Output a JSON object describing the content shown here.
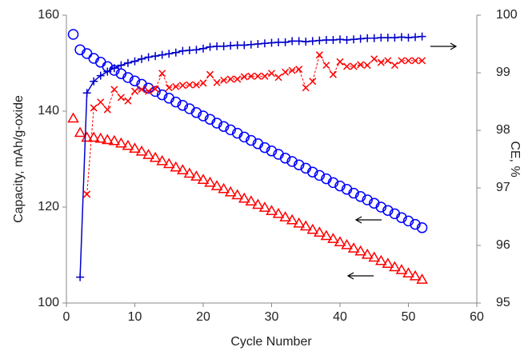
{
  "chart_data": {
    "type": "scatter",
    "x_label": "Cycle Number",
    "y_label": "Capacity, mAh/g-oxide",
    "y2_label": "CE, %",
    "xlim": [
      0,
      60
    ],
    "xticks": [
      0,
      10,
      20,
      30,
      40,
      50,
      60
    ],
    "ylim": [
      100,
      160
    ],
    "yticks": [
      100,
      120,
      140,
      160
    ],
    "y2lim": [
      95,
      100
    ],
    "y2ticks": [
      95,
      96,
      97,
      98,
      99,
      100
    ],
    "x": [
      1,
      2,
      3,
      4,
      5,
      6,
      7,
      8,
      9,
      10,
      11,
      12,
      13,
      14,
      15,
      16,
      17,
      18,
      19,
      20,
      21,
      22,
      23,
      24,
      25,
      26,
      27,
      28,
      29,
      30,
      31,
      32,
      33,
      34,
      35,
      36,
      37,
      38,
      39,
      40,
      41,
      42,
      43,
      44,
      45,
      46,
      47,
      48,
      49,
      50,
      51,
      52
    ],
    "series": [
      {
        "color": "#0000ff",
        "marker": "circle",
        "line": false,
        "values": [
          156,
          152.8,
          152,
          151,
          150.2,
          149.3,
          148.5,
          147.8,
          147,
          146.3,
          145.6,
          144.8,
          144.1,
          143.4,
          142.7,
          141.9,
          141.2,
          140.5,
          139.7,
          139.0,
          138.3,
          137.5,
          136.8,
          136.1,
          135.4,
          134.6,
          133.9,
          133.2,
          132.4,
          131.7,
          131.0,
          130.2,
          129.5,
          128.8,
          128.1,
          127.3,
          126.6,
          125.9,
          125.1,
          124.4,
          123.7,
          122.9,
          122.2,
          121.5,
          120.8,
          120.0,
          119.3,
          118.6,
          117.8,
          117.1,
          116.4,
          115.7
        ]
      },
      {
        "color": "#ff0000",
        "marker": "triangle",
        "line": false,
        "values": [
          138.5,
          135.5,
          134.5,
          134.5,
          134.3,
          134,
          133.8,
          133.3,
          132.8,
          132.2,
          131.6,
          130.9,
          130.3,
          129.6,
          129.0,
          128.3,
          127.7,
          127.0,
          126.4,
          125.7,
          125.1,
          124.4,
          123.8,
          123.1,
          122.5,
          121.8,
          121.2,
          120.5,
          119.9,
          119.2,
          118.6,
          117.9,
          117.3,
          116.6,
          116.0,
          115.3,
          114.7,
          114.0,
          113.4,
          112.7,
          112.1,
          111.4,
          110.8,
          110.1,
          109.5,
          108.8,
          108.2,
          107.5,
          106.9,
          106.2,
          105.6,
          104.9
        ]
      },
      {
        "color": "#0000cc",
        "marker": "plus",
        "line": "solid",
        "axis": "y2",
        "values": [
          null,
          95.45,
          98.65,
          98.85,
          98.95,
          99.02,
          99.08,
          99.13,
          99.17,
          99.2,
          99.24,
          99.27,
          99.29,
          99.31,
          99.33,
          99.35,
          99.38,
          99.39,
          99.4,
          99.42,
          99.45,
          99.46,
          99.46,
          99.47,
          99.48,
          99.48,
          99.49,
          99.5,
          99.51,
          99.52,
          99.53,
          99.53,
          99.55,
          99.55,
          99.54,
          99.55,
          99.56,
          99.57,
          99.57,
          99.58,
          99.57,
          99.58,
          99.59,
          99.6,
          99.6,
          99.61,
          99.61,
          99.61,
          99.62,
          99.61,
          99.62,
          99.63
        ]
      },
      {
        "color": "#ff0000",
        "marker": "x",
        "line": "dashed",
        "axis": "y2",
        "values": [
          null,
          null,
          96.89,
          98.39,
          98.49,
          98.36,
          98.71,
          98.57,
          98.51,
          98.68,
          98.71,
          98.68,
          98.72,
          98.99,
          98.74,
          98.76,
          98.78,
          98.79,
          98.79,
          98.82,
          98.97,
          98.83,
          98.87,
          98.89,
          98.89,
          98.93,
          98.94,
          98.94,
          98.94,
          98.99,
          98.92,
          99.01,
          99.04,
          99.06,
          98.74,
          98.85,
          99.31,
          99.13,
          98.97,
          99.19,
          99.11,
          99.11,
          99.14,
          99.13,
          99.24,
          99.18,
          99.21,
          99.13,
          99.21,
          99.21,
          99.21,
          99.21
        ]
      }
    ]
  }
}
